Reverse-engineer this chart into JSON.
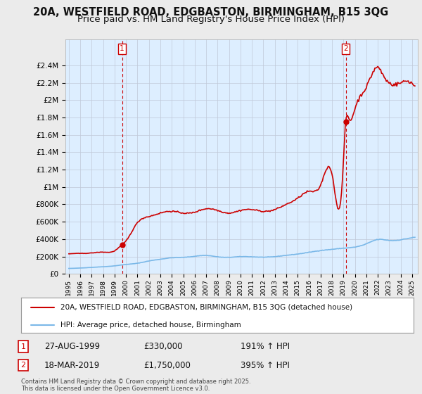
{
  "title_line1": "20A, WESTFIELD ROAD, EDGBASTON, BIRMINGHAM, B15 3QG",
  "title_line2": "Price paid vs. HM Land Registry's House Price Index (HPI)",
  "title_fontsize": 10.5,
  "subtitle_fontsize": 9.5,
  "hpi_color": "#7ab8e8",
  "price_color": "#cc0000",
  "dashed_vline_color": "#cc0000",
  "marker_color": "#cc0000",
  "ylim_min": 0,
  "ylim_max": 2700000,
  "xlim_min": 1994.7,
  "xlim_max": 2025.5,
  "yticks": [
    0,
    200000,
    400000,
    600000,
    800000,
    1000000,
    1200000,
    1400000,
    1600000,
    1800000,
    2000000,
    2200000,
    2400000
  ],
  "ytick_labels": [
    "£0",
    "£200K",
    "£400K",
    "£600K",
    "£800K",
    "£1M",
    "£1.2M",
    "£1.4M",
    "£1.6M",
    "£1.8M",
    "£2M",
    "£2.2M",
    "£2.4M"
  ],
  "xtick_years": [
    1995,
    1996,
    1997,
    1998,
    1999,
    2000,
    2001,
    2002,
    2003,
    2004,
    2005,
    2006,
    2007,
    2008,
    2009,
    2010,
    2011,
    2012,
    2013,
    2014,
    2015,
    2016,
    2017,
    2018,
    2019,
    2020,
    2021,
    2022,
    2023,
    2024,
    2025
  ],
  "sale1_year": 1999.65,
  "sale1_price": 330000,
  "sale2_year": 2019.2,
  "sale2_price": 1750000,
  "legend_label_price": "20A, WESTFIELD ROAD, EDGBASTON, BIRMINGHAM, B15 3QG (detached house)",
  "legend_label_hpi": "HPI: Average price, detached house, Birmingham",
  "annotation1_label": "1",
  "annotation1_date": "27-AUG-1999",
  "annotation1_price": "£330,000",
  "annotation1_hpi": "191% ↑ HPI",
  "annotation2_label": "2",
  "annotation2_date": "18-MAR-2019",
  "annotation2_price": "£1,750,000",
  "annotation2_hpi": "395% ↑ HPI",
  "footer": "Contains HM Land Registry data © Crown copyright and database right 2025.\nThis data is licensed under the Open Government Licence v3.0.",
  "bg_color": "#ebebeb",
  "plot_bg_color": "#ddeeff"
}
